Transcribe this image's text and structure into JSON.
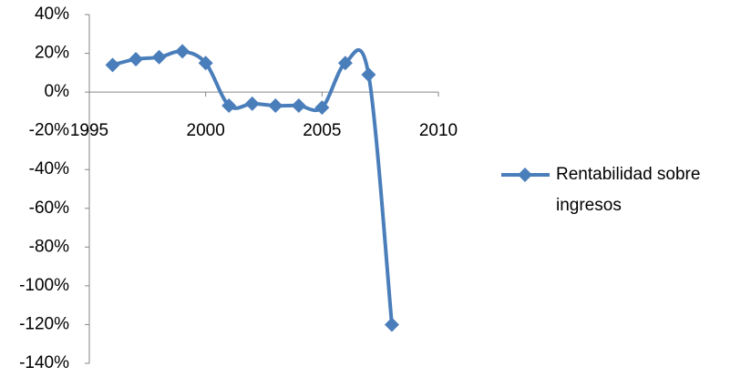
{
  "chart_data": {
    "type": "line",
    "x": [
      1996,
      1997,
      1998,
      1999,
      2000,
      2001,
      2002,
      2003,
      2004,
      2005,
      2006,
      2007,
      2008
    ],
    "series": [
      {
        "name": "Rentabilidad sobre ingresos",
        "color": "#4a7ebb",
        "values": [
          14,
          17,
          18,
          21,
          15,
          -7,
          -6,
          -7,
          -7,
          -8,
          15,
          9,
          -120
        ]
      }
    ],
    "xlim": [
      1995,
      2010
    ],
    "xticks": [
      1995,
      2000,
      2005,
      2010
    ],
    "ylim": [
      -140,
      40
    ],
    "yticks": [
      {
        "value": -140,
        "label": "-140%"
      },
      {
        "value": -120,
        "label": "-120%"
      },
      {
        "value": -100,
        "label": "-100%"
      },
      {
        "value": -80,
        "label": "-80%"
      },
      {
        "value": -60,
        "label": "-60%"
      },
      {
        "value": -40,
        "label": "-40%"
      },
      {
        "value": -20,
        "label": "-20%"
      },
      {
        "value": 0,
        "label": "0%"
      },
      {
        "value": 20,
        "label": "20%"
      },
      {
        "value": 40,
        "label": "40%"
      }
    ],
    "smooth": true,
    "legend": "right"
  }
}
